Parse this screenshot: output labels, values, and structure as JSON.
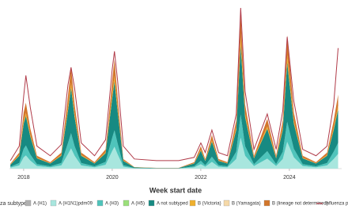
{
  "chart_data": {
    "type": "stacked_area",
    "x_label": "Week start date",
    "legend_title": "za subtype",
    "x": [
      2017.7,
      2017.9,
      2018.0,
      2018.05,
      2018.15,
      2018.3,
      2018.6,
      2018.85,
      2019.0,
      2019.07,
      2019.15,
      2019.3,
      2019.6,
      2019.85,
      2020.0,
      2020.05,
      2020.12,
      2020.25,
      2020.5,
      2021.0,
      2021.5,
      2021.85,
      2022.0,
      2022.1,
      2022.25,
      2022.4,
      2022.6,
      2022.8,
      2022.9,
      2023.0,
      2023.2,
      2023.5,
      2023.7,
      2023.85,
      2023.95,
      2024.1,
      2024.3,
      2024.6,
      2024.85,
      2025.0,
      2025.1
    ],
    "xlim": [
      2017.68,
      2025.18
    ],
    "xticks": [
      2018,
      2020,
      2022,
      2024
    ],
    "ylim": [
      0,
      100
    ],
    "series": [
      {
        "name": "A (H1)",
        "color": "#b0b0b0",
        "values": [
          0,
          0,
          0,
          0,
          0,
          0,
          0,
          0,
          0,
          0,
          0,
          0,
          0,
          0,
          0,
          0,
          0,
          0,
          0,
          0,
          0,
          0,
          0,
          0,
          0,
          0,
          0,
          0,
          0,
          0,
          0,
          0,
          0,
          0,
          0,
          0,
          0,
          0,
          0,
          0,
          0
        ]
      },
      {
        "name": "A (H1N1)pdm09",
        "color": "#a8e6de",
        "values": [
          0.6,
          2,
          7,
          8.2,
          5,
          1.6,
          0.8,
          2,
          9,
          12.6,
          8,
          2,
          0.8,
          2.4,
          11,
          13.6,
          9,
          1.2,
          0.2,
          0.1,
          0.1,
          0.8,
          2.8,
          1.2,
          4.2,
          1.2,
          0.8,
          6,
          19.2,
          8,
          1.6,
          6.2,
          1.6,
          6,
          16.6,
          7,
          1.6,
          0.8,
          2,
          6,
          9.2
        ]
      },
      {
        "name": "A (H3)",
        "color": "#4fc4bb",
        "values": [
          0.5,
          1.5,
          5.3,
          6.2,
          3.8,
          1.2,
          0.6,
          1.5,
          6.8,
          9.5,
          6,
          1.5,
          0.6,
          1.8,
          8.3,
          10.2,
          6.8,
          0.9,
          0.2,
          0.1,
          0.1,
          0.6,
          2.1,
          0.9,
          3.2,
          0.9,
          0.6,
          4.5,
          14.4,
          6,
          1.2,
          4.7,
          1.2,
          4.5,
          12.5,
          5.3,
          1.2,
          0.6,
          1.5,
          4.5,
          6.9
        ]
      },
      {
        "name": "A (H5)",
        "color": "#9be07a",
        "values": [
          0,
          0,
          0,
          0,
          0,
          0,
          0,
          0,
          0,
          0,
          0,
          0,
          0,
          0,
          0,
          0,
          0,
          0,
          0,
          0,
          0,
          0,
          0,
          0,
          0,
          0,
          0,
          0,
          0,
          0,
          0,
          0,
          0,
          0,
          0,
          0,
          0,
          0,
          0,
          0,
          0
        ]
      },
      {
        "name": "A not subtyped",
        "color": "#178a82",
        "values": [
          1.3,
          4.5,
          15.7,
          18.4,
          11.2,
          3.6,
          1.8,
          4.5,
          20.2,
          28.3,
          18,
          4.5,
          1.8,
          5.4,
          24.7,
          30.6,
          20.2,
          2.7,
          0.4,
          0.2,
          0.2,
          1.8,
          6.3,
          2.7,
          9.4,
          2.7,
          1.8,
          13.5,
          43.2,
          18,
          3.6,
          13.9,
          3.6,
          13.5,
          37.3,
          15.7,
          3.6,
          1.8,
          4.5,
          13.5,
          20.7
        ]
      },
      {
        "name": "B (Victoria)",
        "color": "#efb02e",
        "values": [
          0.2,
          0.5,
          1.7,
          2,
          1.2,
          0.4,
          0.2,
          0.5,
          2.2,
          3.1,
          2,
          0.5,
          0.2,
          0.6,
          2.7,
          3.4,
          2.2,
          0.3,
          0.1,
          0,
          0,
          0.2,
          0.7,
          0.3,
          1,
          0.3,
          0.2,
          1.5,
          4.8,
          2,
          0.4,
          1.5,
          0.4,
          1.5,
          4.1,
          1.7,
          0.4,
          0.2,
          0.5,
          1.5,
          2.3
        ]
      },
      {
        "name": "B (Yamagata)",
        "color": "#f6d9a8",
        "values": [
          0,
          0,
          0,
          0,
          0,
          0,
          0,
          0,
          0,
          0,
          0,
          0,
          0,
          0,
          0,
          0,
          0,
          0,
          0,
          0,
          0,
          0,
          0,
          0,
          0,
          0,
          0,
          0,
          0,
          0,
          0,
          0,
          0,
          0,
          0,
          0,
          0,
          0,
          0,
          0,
          0
        ]
      },
      {
        "name": "B (lineage not determined)",
        "color": "#d2762c",
        "values": [
          0.4,
          1.5,
          5.3,
          6.2,
          3.8,
          1.2,
          0.6,
          1.5,
          6.8,
          9.5,
          6,
          1.5,
          0.6,
          1.8,
          8.3,
          10.2,
          6.8,
          0.9,
          0.1,
          0.1,
          0.1,
          0.6,
          2.1,
          0.9,
          3.2,
          0.9,
          0.6,
          4.5,
          14.4,
          6,
          1.2,
          4.7,
          1.2,
          4.5,
          12.5,
          5.3,
          1.2,
          0.6,
          1.5,
          4.5,
          6.9
        ]
      }
    ],
    "line": {
      "name": "Influenza percent p",
      "color": "#b03a48",
      "values": [
        5,
        14,
        45,
        58,
        38,
        14,
        8,
        15,
        52,
        63,
        50,
        16,
        8,
        18,
        62,
        73,
        55,
        14,
        6,
        5,
        5,
        7,
        16,
        10,
        24,
        10,
        8,
        34,
        100,
        48,
        12,
        34,
        12,
        36,
        82,
        42,
        12,
        8,
        14,
        40,
        75
      ]
    }
  }
}
